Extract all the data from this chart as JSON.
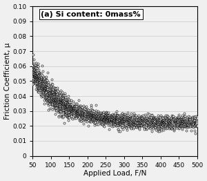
{
  "title": "(a) Si content: 0mass%",
  "xlabel": "Applied Load, F/N",
  "ylabel": "Friction Coefficient, μ",
  "xlim": [
    50,
    500
  ],
  "ylim": [
    0,
    0.1
  ],
  "xticks": [
    50,
    100,
    150,
    200,
    250,
    300,
    350,
    400,
    450,
    500
  ],
  "yticks": [
    0,
    0.01,
    0.02,
    0.03,
    0.04,
    0.05,
    0.06,
    0.07,
    0.08,
    0.09,
    0.1
  ],
  "background_color": "#f0f0f0",
  "marker_color": "black",
  "marker_face": "white",
  "marker_size": 2.2,
  "marker_lw": 0.4,
  "seed": 42,
  "decay_scale": 80,
  "base_mu": 0.022,
  "amplitude": 0.035,
  "noise_scale_low": 0.004,
  "noise_scale_high": 0.002
}
